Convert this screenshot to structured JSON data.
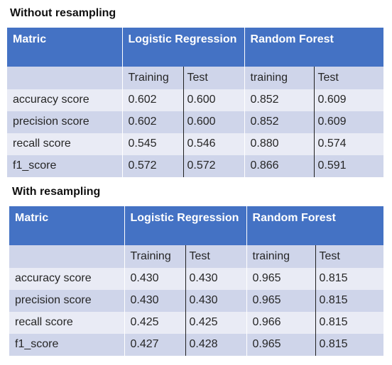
{
  "sections": [
    {
      "title": "Without resampling",
      "header": {
        "metric_col": "Matric",
        "model_1": "Logistic Regression",
        "model_2": "Random Forest"
      },
      "subheader": {
        "m1_train": "Training",
        "m1_test": "Test",
        "m2_train": "training",
        "m2_test": "Test"
      },
      "rows": [
        {
          "metric": "accuracy score",
          "lr_train": "0.602",
          "lr_test": "0.600",
          "rf_train": "0.852",
          "rf_test": "0.609"
        },
        {
          "metric": "precision score",
          "lr_train": "0.602",
          "lr_test": "0.600",
          "rf_train": "0.852",
          "rf_test": "0.609"
        },
        {
          "metric": "recall score",
          "lr_train": "0.545",
          "lr_test": "0.546",
          "rf_train": "0.880",
          "rf_test": "0.574"
        },
        {
          "metric": "f1_score",
          "lr_train": "0.572",
          "lr_test": "0.572",
          "rf_train": "0.866",
          "rf_test": "0.591"
        }
      ]
    },
    {
      "title": "With resampling",
      "header": {
        "metric_col": "Matric",
        "model_1": "Logistic Regression",
        "model_2": "Random Forest"
      },
      "subheader": {
        "m1_train": "Training",
        "m1_test": "Test",
        "m2_train": "training",
        "m2_test": "Test"
      },
      "rows": [
        {
          "metric": "accuracy score",
          "lr_train": "0.430",
          "lr_test": "0.430",
          "rf_train": "0.965",
          "rf_test": "0.815"
        },
        {
          "metric": "precision score",
          "lr_train": "0.430",
          "lr_test": "0.430",
          "rf_train": "0.965",
          "rf_test": "0.815"
        },
        {
          "metric": "recall score",
          "lr_train": "0.425",
          "lr_test": "0.425",
          "rf_train": "0.966",
          "rf_test": "0.815"
        },
        {
          "metric": "f1_score",
          "lr_train": "0.427",
          "lr_test": "0.428",
          "rf_train": "0.965",
          "rf_test": "0.815"
        }
      ]
    }
  ],
  "colors": {
    "header_bg": "#4472c4",
    "header_text": "#ffffff",
    "row_light": "#e9ebf5",
    "row_dark": "#cfd5ea"
  }
}
